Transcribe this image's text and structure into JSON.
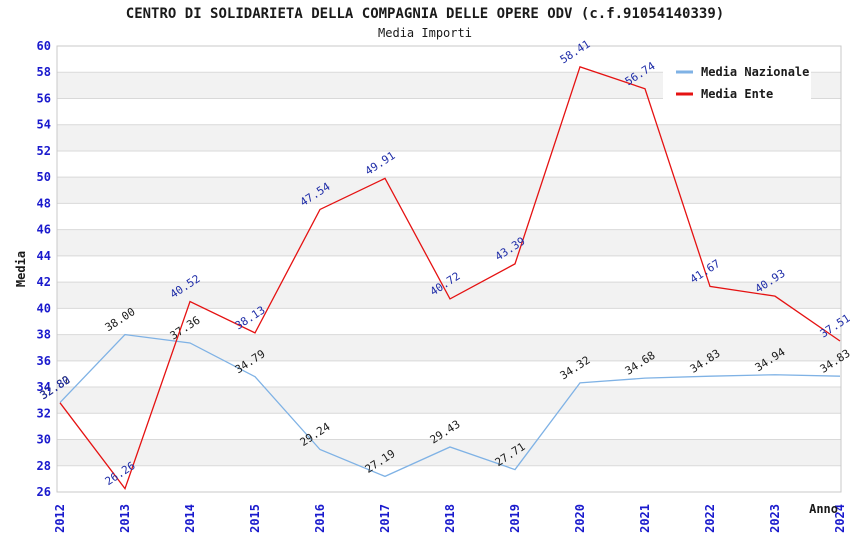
{
  "header": {
    "title": "CENTRO DI SOLIDARIETA DELLA COMPAGNIA DELLE OPERE ODV (c.f.91054140339)",
    "subtitle": "Media Importi"
  },
  "chart_data": {
    "type": "line",
    "title": "CENTRO DI SOLIDARIETA DELLA COMPAGNIA DELLE OPERE ODV (c.f.91054140339)",
    "subtitle": "Media Importi",
    "x": [
      2012,
      2013,
      2014,
      2015,
      2016,
      2017,
      2018,
      2019,
      2020,
      2021,
      2022,
      2023,
      2024
    ],
    "xlabel": "Anno",
    "ylabel": "Media",
    "ylim": [
      26,
      60
    ],
    "ytick_step": 2,
    "grid": true,
    "background_stripes": true,
    "legend_position": "top-right",
    "series": [
      {
        "name": "Media Nazionale",
        "color": "#7fb2e5",
        "label_color": "#1a1a1a",
        "values": [
          32.82,
          38.0,
          37.36,
          34.79,
          29.24,
          27.19,
          29.43,
          27.71,
          34.32,
          34.68,
          34.83,
          34.94,
          34.83
        ]
      },
      {
        "name": "Media Ente",
        "color": "#e51212",
        "label_color": "#1f2da8",
        "values": [
          32.8,
          26.26,
          40.52,
          38.13,
          47.54,
          49.91,
          40.72,
          43.39,
          58.41,
          56.74,
          41.67,
          40.93,
          37.51
        ]
      }
    ],
    "colors": {
      "axis_tick": "#1a1acd",
      "grid": "#d9d9d9",
      "stripe": "#f2f2f2",
      "plot_border": "#c9c9c9",
      "text": "#1a1a1a",
      "legend_bg": "#ffffff"
    }
  }
}
